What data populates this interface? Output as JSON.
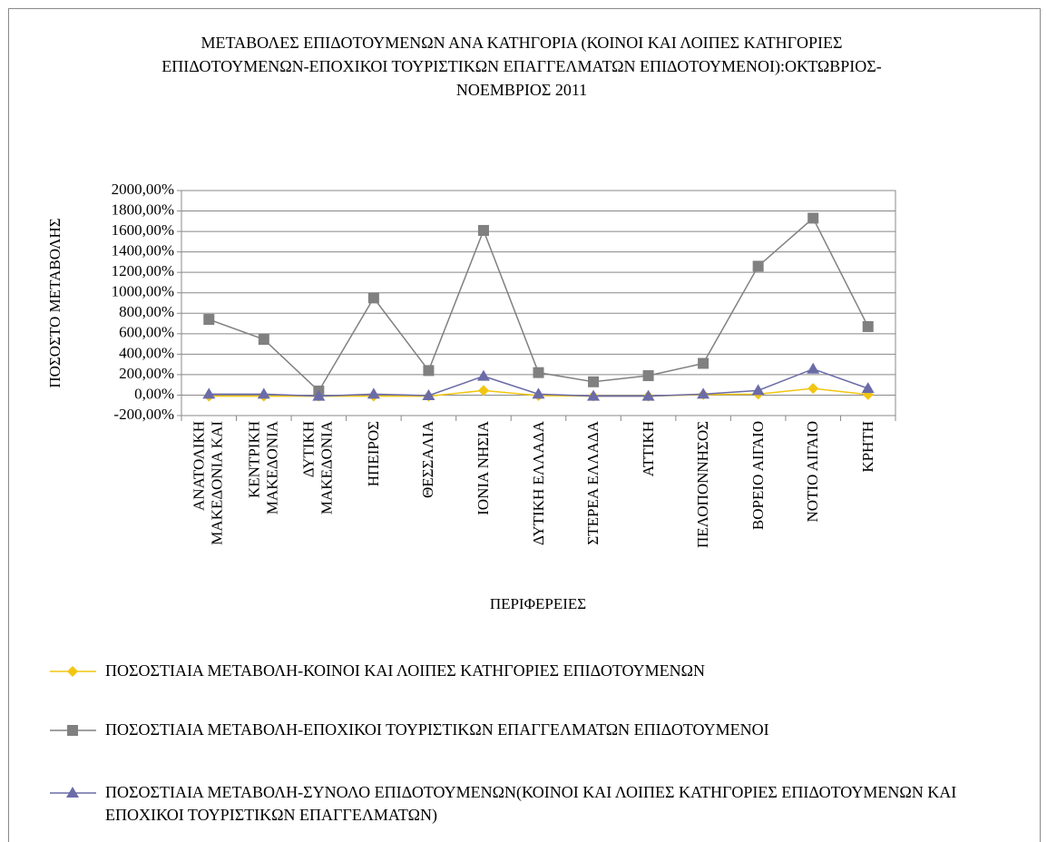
{
  "chart_data": {
    "type": "line",
    "title": "ΜΕΤΑΒΟΛΕΣ ΕΠΙΔΟΤΟΥΜΕΝΩΝ ΑΝΑ ΚΑΤΗΓΟΡΙΑ (ΚΟΙΝΟΙ ΚΑΙ ΛΟΙΠΕΣ ΚΑΤΗΓΟΡΙΕΣ ΕΠΙΔΟΤΟΥΜΕΝΩΝ-ΕΠΟΧΙΚΟΙ ΤΟΥΡΙΣΤΙΚΩΝ ΕΠΑΓΓΕΛΜΑΤΩΝ ΕΠΙΔΟΤΟΥΜΕΝΟΙ):ΟΚΤΩΒΡΙΟΣ-ΝΟΕΜΒΡΙΟΣ 2011",
    "x_label": "ΠΕΡΙΦΕΡΕΙΕΣ",
    "y_label": "ΠΟΣΟΣΤΟ ΜΕΤΑΒΟΛΗΣ",
    "categories": [
      "ΑΝΑΤΟΛΙΚΗ ΜΑΚΕΔΟΝΙΑ ΚΑΙ",
      "ΚΕΝΤΡΙΚΗ ΜΑΚΕΔΟΝΙΑ",
      "ΔΥΤΙΚΗ ΜΑΚΕΔΟΝΙΑ",
      "ΗΠΕΙΡΟΣ",
      "ΘΕΣΣΑΛΙΑ",
      "ΙΟΝΙΑ ΝΗΣΙΑ",
      "ΔΥΤΙΚΗ ΕΛΛΑΔΑ",
      "ΣΤΕΡΕΑ ΕΛΛΑΔΑ",
      "ΑΤΤΙΚΗ",
      "ΠΕΛΟΠΟΝΝΗΣΟΣ",
      "ΒΟΡΕΙΟ ΑΙΓΑΙΟ",
      "ΝΟΤΙΟ ΑΙΓΑΙΟ",
      "ΚΡΗΤΗ"
    ],
    "series": [
      {
        "name": "ΠΟΣΟΣΤΙΑΙΑ ΜΕΤΑΒΟΛΗ-ΚΟΙΝΟΙ ΚΑΙ ΛΟΙΠΕΣ ΚΑΤΗΓΟΡΙΕΣ  ΕΠΙΔΟΤΟΥΜΕΝΩΝ",
        "color": "#f2c511",
        "marker": "diamond",
        "values": [
          -10,
          -10,
          -10,
          -10,
          -10,
          45,
          -5,
          -10,
          -10,
          5,
          10,
          65,
          5
        ]
      },
      {
        "name": "ΠΟΣΟΣΤΙΑΙΑ ΜΕΤΑΒΟΛΗ-ΕΠΟΧΙΚΟΙ ΤΟΥΡΙΣΤΙΚΩΝ ΕΠΑΓΓΕΛΜΑΤΩΝ ΕΠΙΔΟΤΟΥΜΕΝΟΙ",
        "color": "#808080",
        "marker": "square",
        "values": [
          740,
          545,
          40,
          950,
          240,
          1610,
          220,
          130,
          190,
          310,
          1260,
          1730,
          670
        ]
      },
      {
        "name": "ΠΟΣΟΣΤΙΑΙΑ ΜΕΤΑΒΟΛΗ-ΣΥΝΟΛΟ ΕΠΙΔΟΤΟΥΜΕΝΩΝ(ΚΟΙΝΟΙ ΚΑΙ ΛΟΙΠΕΣ ΚΑΤΗΓΟΡΙΕΣ ΕΠΙΔΟΤΟΥΜΕΝΩΝ ΚΑΙ ΕΠΟΧΙΚΟΙ ΤΟΥΡΙΣΤΙΚΩΝ ΕΠΑΓΓΕΛΜΑΤΩΝ)",
        "color": "#6b6ba8",
        "marker": "triangle",
        "values": [
          10,
          10,
          -10,
          10,
          -5,
          185,
          10,
          -10,
          -10,
          10,
          45,
          255,
          65
        ]
      }
    ],
    "ylim": [
      -200,
      2000
    ],
    "yticks": [
      {
        "value": -200,
        "label": "-200,00%"
      },
      {
        "value": 0,
        "label": "0,00%"
      },
      {
        "value": 200,
        "label": "200,00%"
      },
      {
        "value": 400,
        "label": "400,00%"
      },
      {
        "value": 600,
        "label": "600,00%"
      },
      {
        "value": 800,
        "label": "800,00%"
      },
      {
        "value": 1000,
        "label": "1000,00%"
      },
      {
        "value": 1200,
        "label": "1200,00%"
      },
      {
        "value": 1400,
        "label": "1400,00%"
      },
      {
        "value": 1600,
        "label": "1600,00%"
      },
      {
        "value": 1800,
        "label": "1800,00%"
      },
      {
        "value": 2000,
        "label": "2000,00%"
      }
    ],
    "grid": true,
    "legend": "bottom"
  }
}
